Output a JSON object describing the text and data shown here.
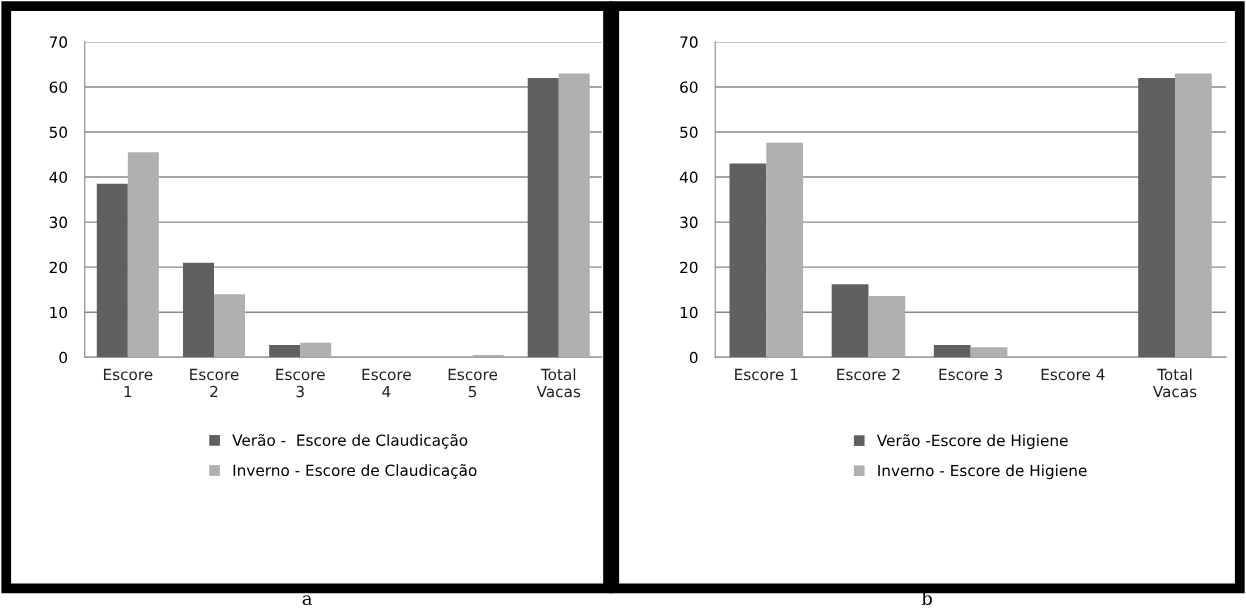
{
  "chart_data": [
    {
      "type": "bar",
      "categories": [
        "Escore\n1",
        "Escore\n2",
        "Escore\n3",
        "Escore\n4",
        "Escore\n5",
        "Total\nVacas"
      ],
      "series": [
        {
          "name": "Verão -  Escore de Claudicação",
          "color": "#606060",
          "values": [
            38.5,
            21,
            2.7,
            0,
            0,
            62
          ]
        },
        {
          "name": "Inverno - Escore de Claudicação",
          "color": "#b0b0b0",
          "values": [
            45.5,
            14,
            3.2,
            0,
            0.5,
            63
          ]
        }
      ],
      "ylim": [
        0,
        70
      ],
      "yticks": [
        0,
        10,
        20,
        30,
        40,
        50,
        60,
        70
      ],
      "grid": "y",
      "legend": "bottom",
      "annotations": [
        "a"
      ]
    },
    {
      "type": "bar",
      "categories": [
        "Escore 1",
        "Escore 2",
        "Escore 3",
        "Escore 4",
        "Total\nVacas"
      ],
      "series": [
        {
          "name": "Verão -Escore de Higiene",
          "color": "#606060",
          "values": [
            43,
            16.2,
            2.7,
            0,
            62
          ]
        },
        {
          "name": "Inverno - Escore de Higiene",
          "color": "#b0b0b0",
          "values": [
            47.6,
            13.6,
            2.2,
            0,
            63
          ]
        }
      ],
      "ylim": [
        0,
        70
      ],
      "yticks": [
        0,
        10,
        20,
        30,
        40,
        50,
        60,
        70
      ],
      "grid": "y",
      "legend": "bottom",
      "annotations": [
        "b"
      ]
    }
  ]
}
